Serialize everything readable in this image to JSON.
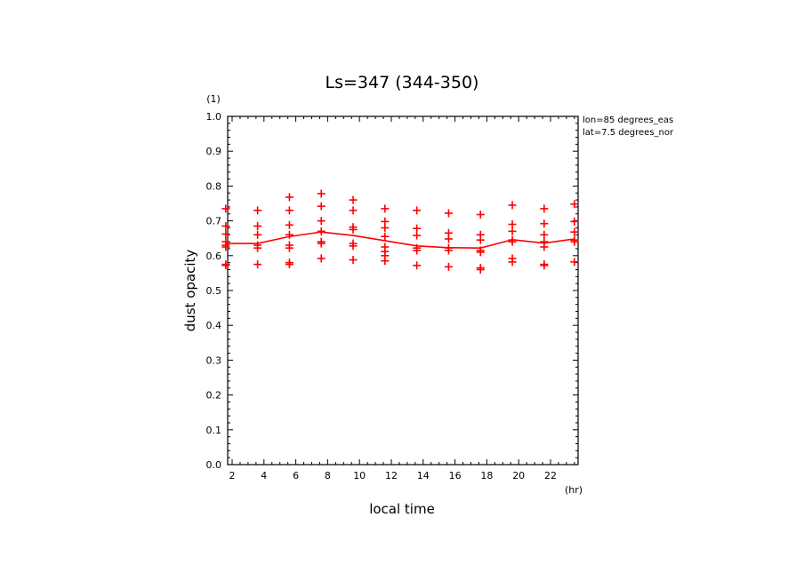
{
  "chart_data": {
    "type": "scatter",
    "title": "Ls=347 (344-350)",
    "xlabel": "local time",
    "xunit": "(hr)",
    "ylabel": "dust opacity",
    "yunit": "(1)",
    "annotations": [
      "lon=85 degrees_eas",
      "lat=7.5 degrees_nor"
    ],
    "xlim": [
      1.5,
      23.6
    ],
    "ylim": [
      0.0,
      1.0
    ],
    "xticks": [
      "2",
      "4",
      "6",
      "8",
      "10",
      "12",
      "14",
      "16",
      "18",
      "20",
      "22"
    ],
    "yticks": [
      "0.0",
      "0.1",
      "0.2",
      "0.3",
      "0.4",
      "0.5",
      "0.6",
      "0.7",
      "0.8",
      "0.9",
      "1.0"
    ],
    "grid": false,
    "color": "#ff0000",
    "mean_line": {
      "x": [
        1.6,
        3.6,
        5.6,
        7.6,
        9.6,
        11.6,
        13.6,
        15.6,
        17.6,
        19.6,
        21.6,
        23.5
      ],
      "y": [
        0.635,
        0.635,
        0.655,
        0.668,
        0.658,
        0.643,
        0.628,
        0.623,
        0.622,
        0.646,
        0.636,
        0.648
      ]
    },
    "points": [
      {
        "x": 1.6,
        "y": [
          0.735,
          0.685,
          0.662,
          0.64,
          0.63,
          0.625,
          0.575,
          0.572
        ]
      },
      {
        "x": 3.6,
        "y": [
          0.73,
          0.685,
          0.66,
          0.63,
          0.622,
          0.575
        ]
      },
      {
        "x": 5.6,
        "y": [
          0.768,
          0.73,
          0.688,
          0.66,
          0.63,
          0.622,
          0.58,
          0.575
        ]
      },
      {
        "x": 7.6,
        "y": [
          0.778,
          0.742,
          0.7,
          0.67,
          0.64,
          0.635,
          0.592
        ]
      },
      {
        "x": 9.6,
        "y": [
          0.76,
          0.73,
          0.682,
          0.675,
          0.635,
          0.628,
          0.588
        ]
      },
      {
        "x": 11.6,
        "y": [
          0.735,
          0.698,
          0.68,
          0.655,
          0.625,
          0.612,
          0.6,
          0.585
        ]
      },
      {
        "x": 13.6,
        "y": [
          0.73,
          0.678,
          0.658,
          0.622,
          0.615,
          0.572
        ]
      },
      {
        "x": 15.6,
        "y": [
          0.722,
          0.665,
          0.648,
          0.622,
          0.615,
          0.568
        ]
      },
      {
        "x": 17.6,
        "y": [
          0.718,
          0.66,
          0.645,
          0.615,
          0.61,
          0.565,
          0.56
        ]
      },
      {
        "x": 19.6,
        "y": [
          0.745,
          0.69,
          0.67,
          0.645,
          0.64,
          0.592,
          0.582
        ]
      },
      {
        "x": 21.6,
        "y": [
          0.735,
          0.692,
          0.66,
          0.64,
          0.625,
          0.575,
          0.572
        ]
      },
      {
        "x": 23.5,
        "y": [
          0.748,
          0.698,
          0.668,
          0.645,
          0.64,
          0.582
        ]
      }
    ]
  }
}
